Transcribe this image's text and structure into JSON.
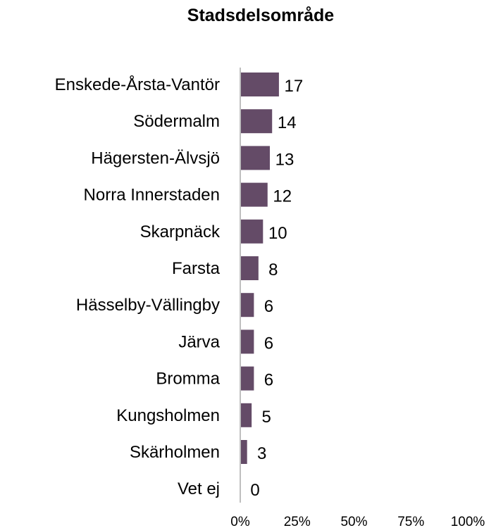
{
  "chart_data": {
    "type": "bar",
    "orientation": "horizontal",
    "title": "Stadsdelsområde",
    "categories": [
      "Enskede-Årsta-Vantör",
      "Södermalm",
      "Hägersten-Älvsjö",
      "Norra Innerstaden",
      "Skarpnäck",
      "Farsta",
      "Hässelby-Vällingby",
      "Järva",
      "Bromma",
      "Kungsholmen",
      "Skärholmen",
      "Vet ej"
    ],
    "values": [
      17,
      14,
      13,
      12,
      10,
      8,
      6,
      6,
      6,
      5,
      3,
      0
    ],
    "value_labels": [
      "17",
      "14",
      "13",
      "12",
      "10",
      "8",
      "6",
      "6",
      "6",
      "5",
      "3",
      "0"
    ],
    "xlim": [
      0,
      100
    ],
    "x_ticks": [
      0,
      25,
      50,
      75,
      100
    ],
    "x_tick_labels": [
      "0%",
      "25%",
      "50%",
      "75%",
      "100%"
    ],
    "xlabel": "",
    "ylabel": "",
    "grid": false,
    "legend": "none",
    "bar_color": "#644B67",
    "axis_color": "#BFBFBF"
  }
}
